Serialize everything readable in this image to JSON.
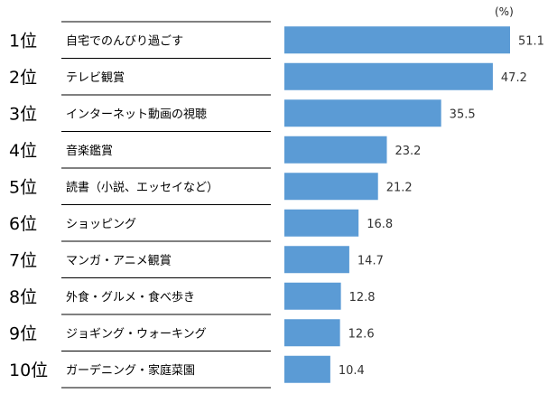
{
  "chart_data": {
    "type": "bar",
    "orientation": "horizontal",
    "unit": "(%)",
    "ranks": [
      "1位",
      "2位",
      "3位",
      "4位",
      "5位",
      "6位",
      "7位",
      "8位",
      "9位",
      "10位"
    ],
    "categories": [
      "自宅でのんびり過ごす",
      "テレビ観賞",
      "インターネット動画の視聴",
      "音楽鑑賞",
      "読書（小説、エッセイなど）",
      "ショッピング",
      "マンガ・アニメ観賞",
      "外食・グルメ・食べ歩き",
      "ジョギング・ウォーキング",
      "ガーデニング・家庭菜園"
    ],
    "values": [
      51.1,
      47.2,
      35.5,
      23.2,
      21.2,
      16.8,
      14.7,
      12.8,
      12.6,
      10.4
    ],
    "value_labels": [
      "51.1",
      "47.2",
      "35.5",
      "23.2",
      "21.2",
      "16.8",
      "14.7",
      "12.8",
      "12.6",
      "10.4"
    ],
    "bar_color": "#5b9bd5",
    "grid": false,
    "legend": "none"
  }
}
